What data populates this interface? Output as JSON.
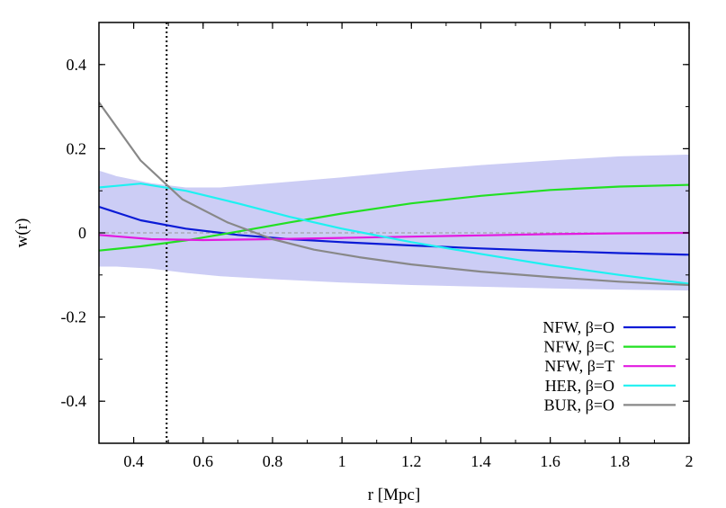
{
  "chart_data": {
    "type": "line",
    "xlabel": "r [Mpc]",
    "ylabel": "w(r)",
    "xlim": [
      0.3,
      2.0
    ],
    "ylim": [
      -0.5,
      0.5
    ],
    "xticks": [
      0.4,
      0.6,
      0.8,
      1.0,
      1.2,
      1.4,
      1.6,
      1.8,
      2.0
    ],
    "xtick_labels": [
      "0.4",
      "0.6",
      "0.8",
      "1",
      "1.2",
      "1.4",
      "1.6",
      "1.8",
      "2"
    ],
    "yticks": [
      -0.4,
      -0.2,
      0.0,
      0.2,
      0.4
    ],
    "ytick_labels": [
      "-0.4",
      "-0.2",
      "0",
      "0.2",
      "0.4"
    ],
    "legend_position": "bottom-right",
    "band": {
      "color": "#cccdf5",
      "x": [
        0.3,
        0.35,
        0.45,
        0.55,
        0.65,
        0.8,
        1.0,
        1.2,
        1.4,
        1.6,
        1.8,
        2.0
      ],
      "upper": [
        0.148,
        0.135,
        0.118,
        0.108,
        0.108,
        0.118,
        0.132,
        0.148,
        0.161,
        0.172,
        0.182,
        0.186
      ],
      "lower": [
        -0.08,
        -0.08,
        -0.085,
        -0.095,
        -0.103,
        -0.11,
        -0.118,
        -0.124,
        -0.128,
        -0.132,
        -0.135,
        -0.137
      ]
    },
    "zero_line": {
      "y": 0,
      "color": "#999999",
      "style": "dashed"
    },
    "vline": {
      "x": 0.495,
      "style": "dotted",
      "color": "#000000"
    },
    "series": [
      {
        "name": "NFW, β=O",
        "color": "#0a1bd6",
        "x": [
          0.3,
          0.42,
          0.55,
          0.7,
          0.85,
          1.0,
          1.2,
          1.4,
          1.6,
          1.8,
          2.0
        ],
        "y": [
          0.062,
          0.03,
          0.01,
          -0.005,
          -0.015,
          -0.022,
          -0.03,
          -0.037,
          -0.043,
          -0.048,
          -0.052
        ]
      },
      {
        "name": "NFW, β=C",
        "color": "#22e022",
        "x": [
          0.3,
          0.42,
          0.55,
          0.7,
          0.85,
          1.0,
          1.2,
          1.4,
          1.6,
          1.8,
          2.0
        ],
        "y": [
          -0.042,
          -0.032,
          -0.018,
          0.003,
          0.025,
          0.046,
          0.07,
          0.088,
          0.102,
          0.11,
          0.114
        ]
      },
      {
        "name": "NFW, β=T",
        "color": "#e21be0",
        "x": [
          0.3,
          0.45,
          0.6,
          0.8,
          1.0,
          1.2,
          1.4,
          1.6,
          1.8,
          2.0
        ],
        "y": [
          -0.005,
          -0.015,
          -0.017,
          -0.015,
          -0.012,
          -0.009,
          -0.006,
          -0.003,
          -0.001,
          0.0
        ]
      },
      {
        "name": "HER, β=O",
        "color": "#1ef1f1",
        "x": [
          0.3,
          0.42,
          0.55,
          0.7,
          0.85,
          1.0,
          1.2,
          1.4,
          1.6,
          1.8,
          2.0
        ],
        "y": [
          0.108,
          0.117,
          0.1,
          0.07,
          0.038,
          0.01,
          -0.022,
          -0.05,
          -0.077,
          -0.1,
          -0.121
        ]
      },
      {
        "name": "BUR, β=O",
        "color": "#888888",
        "x": [
          0.3,
          0.42,
          0.54,
          0.67,
          0.8,
          0.92,
          1.05,
          1.2,
          1.4,
          1.6,
          1.8,
          2.0
        ],
        "y": [
          0.31,
          0.172,
          0.08,
          0.025,
          -0.015,
          -0.04,
          -0.058,
          -0.075,
          -0.092,
          -0.105,
          -0.116,
          -0.124
        ]
      }
    ]
  }
}
